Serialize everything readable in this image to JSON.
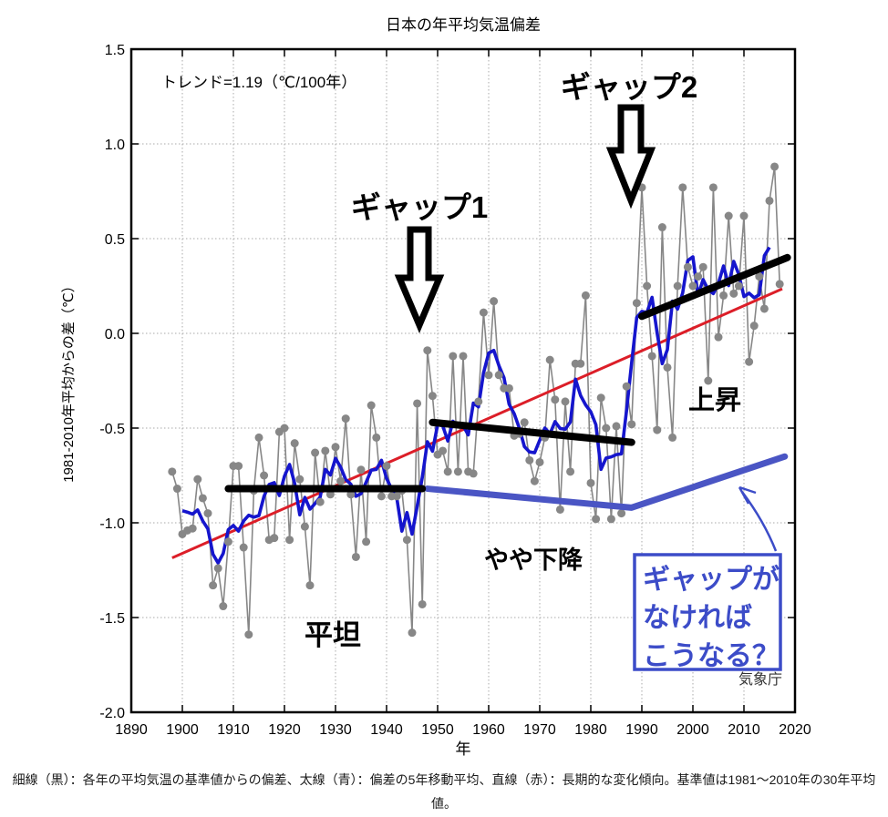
{
  "title": "日本の年平均気温偏差",
  "trend_label": "トレンド=1.19（℃/100年）",
  "source": "気象庁",
  "axes": {
    "x_label": "年",
    "y_label": "1981-2010年平均からの差（℃）",
    "x_ticks": [
      "1890",
      "1900",
      "1910",
      "1920",
      "1930",
      "1940",
      "1950",
      "1960",
      "1970",
      "1980",
      "1990",
      "2000",
      "2010",
      "2020"
    ],
    "y_ticks": [
      "1.5",
      "1.0",
      "0.5",
      "0.0",
      "-0.5",
      "-1.0",
      "-1.5",
      "-2.0"
    ]
  },
  "annotations": {
    "gap1": "ギャップ1",
    "gap2": "ギャップ2",
    "flat": "平坦",
    "slight_decline": "やや下降",
    "rise": "上昇",
    "box_lines": [
      "ギャップが",
      "なければ",
      "こうなる？"
    ]
  },
  "caption": {
    "line1": "細線（黒）：各年の平均気温の基準値からの偏差、太線（青）：偏差の5年移動平均、直線（赤）：長期的な変化傾向。基準値は1981～2010年の30年平均",
    "line2": "値。"
  },
  "colors": {
    "yearly_gray": "#878787",
    "moving_avg_blue": "#1515cd",
    "trend_red": "#dc1e28",
    "segment_black": "#000000",
    "alt_blue": "#4a55c4",
    "box_blue": "#3c4cc8",
    "grid_gray": "#aaaaaa"
  },
  "chart_data": {
    "type": "line",
    "title": "日本の年平均気温偏差",
    "xlabel": "年",
    "ylabel": "1981-2010年平均からの差（℃）",
    "xlim": [
      1890,
      2020
    ],
    "ylim": [
      -2.0,
      1.5
    ],
    "grid": "dotted at decades and 0.5°C steps",
    "legend_note": "細線(黒)=各年偏差, 太線(青)=5年移動平均, 直線(赤)=長期変化傾向",
    "yearly_series": {
      "name": "各年の平均気温の基準値からの偏差（細線・黒）",
      "start_year": 1898,
      "values": [
        -0.73,
        -0.82,
        -1.06,
        -1.04,
        -1.03,
        -0.77,
        -0.87,
        -0.95,
        -1.33,
        -1.24,
        -1.44,
        -1.1,
        -0.7,
        -0.7,
        -1.13,
        -1.59,
        -0.83,
        -0.55,
        -0.75,
        -1.09,
        -1.08,
        -0.52,
        -0.5,
        -1.09,
        -0.58,
        -0.77,
        -1.02,
        -1.33,
        -0.63,
        -0.89,
        -0.62,
        -0.85,
        -0.6,
        -0.78,
        -0.45,
        -0.85,
        -1.18,
        -0.72,
        -1.1,
        -0.38,
        -0.55,
        -0.86,
        -0.7,
        -0.86,
        -0.86,
        -0.83,
        -1.09,
        -1.58,
        -0.37,
        -1.43,
        -0.09,
        -0.33,
        -0.64,
        -0.62,
        -0.73,
        -0.12,
        -0.73,
        -0.12,
        -0.73,
        -0.74,
        -0.36,
        0.11,
        -0.22,
        0.17,
        -0.22,
        -0.29,
        -0.29,
        -0.54,
        -0.53,
        -0.47,
        -0.67,
        -0.78,
        -0.68,
        -0.55,
        -0.14,
        -0.35,
        -0.93,
        -0.36,
        -0.73,
        -0.16,
        -0.16,
        0.2,
        -0.79,
        -0.98,
        -0.34,
        -0.5,
        -0.98,
        -0.49,
        -0.95,
        -0.28,
        -0.48,
        0.16,
        0.77,
        0.25,
        -0.12,
        -0.51,
        0.56,
        -0.18,
        -0.55,
        0.25,
        0.77,
        0.35,
        0.25,
        0.3,
        0.35,
        -0.25,
        0.77,
        -0.02,
        0.2,
        0.62,
        0.21,
        0.25,
        0.62,
        -0.15,
        0.04,
        0.3,
        0.13,
        0.7,
        0.88,
        0.26
      ]
    },
    "moving_average": {
      "name": "偏差の5年移動平均（太線・青）",
      "window": 5,
      "derived_from": "yearly_series"
    },
    "trend_line": {
      "name": "長期的な変化傾向（直線・赤）",
      "rate_c_per_100yr": 1.19,
      "points": [
        [
          1898,
          -1.185
        ],
        [
          2017.5,
          0.235
        ]
      ]
    },
    "era_segments": [
      {
        "label": "平坦",
        "points": [
          [
            1909,
            -0.82
          ],
          [
            1947,
            -0.82
          ]
        ]
      },
      {
        "label": "やや下降",
        "points": [
          [
            1949,
            -0.47
          ],
          [
            1988,
            -0.575
          ]
        ]
      },
      {
        "label": "上昇",
        "points": [
          [
            1990,
            0.09
          ],
          [
            2018.5,
            0.4
          ]
        ]
      }
    ],
    "alt_no_gap_line": {
      "label": "ギャップがなければこうなる？",
      "points": [
        [
          1948,
          -0.82
        ],
        [
          1988,
          -0.92
        ],
        [
          2018,
          -0.65
        ]
      ]
    }
  }
}
